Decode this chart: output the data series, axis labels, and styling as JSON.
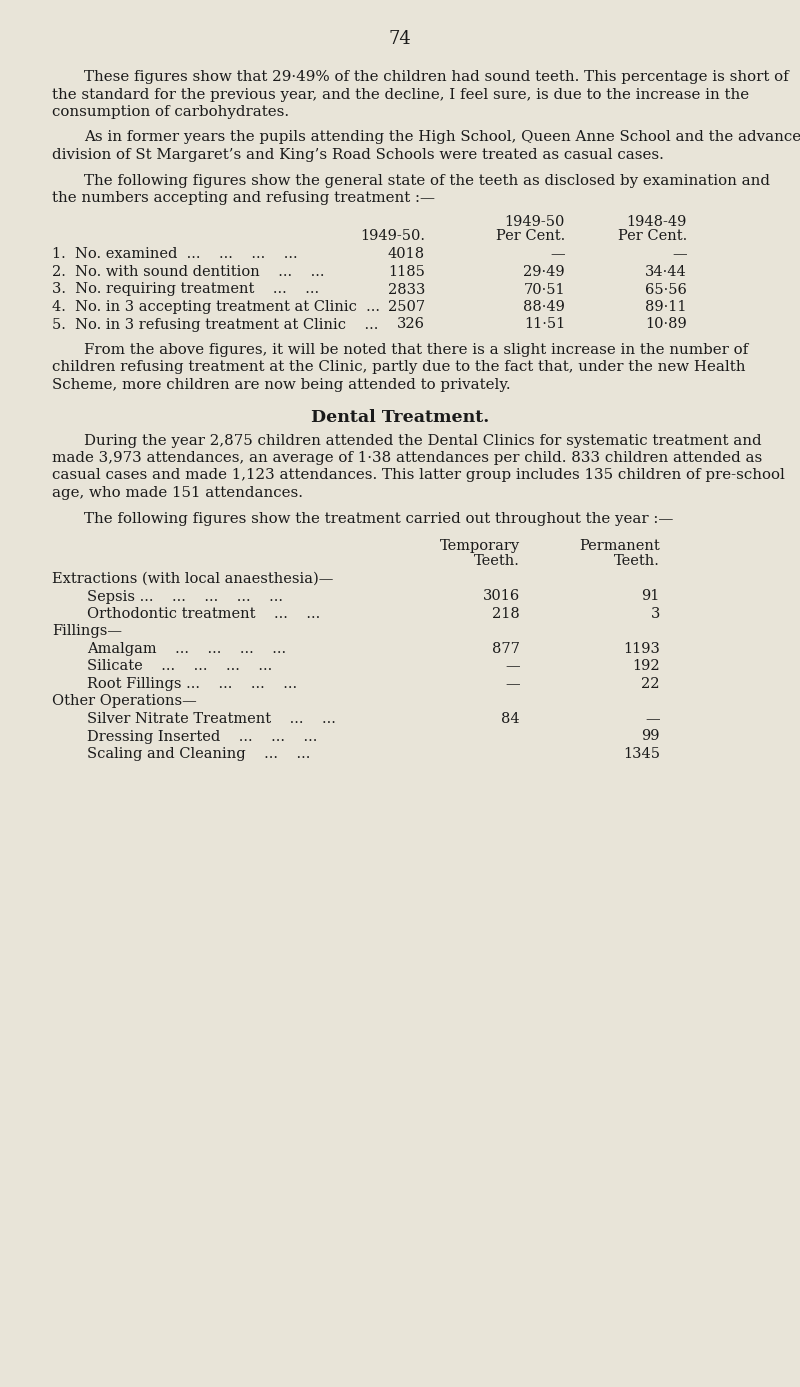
{
  "page_number": "74",
  "bg_color": "#e8e4d8",
  "text_color": "#1a1a1a",
  "paragraphs": [
    "These figures show that 29·49% of the children had sound teeth.  This percentage is short of the standard for the previous year, and the decline, I feel sure, is due to the increase in the consumption of carbohydrates.",
    "As in former years the pupils attending the High School, Queen Anne School and the advanced division of St Margaret’s and King’s Road Schools were treated as casual cases.",
    "The following figures show the general state of the teeth as disclosed by examination and the numbers accepting and refusing treatment :—"
  ],
  "table1_rows": [
    [
      "1.  No. examined  ...    ...    ...    ...",
      "4018",
      "—",
      "—"
    ],
    [
      "2.  No. with sound dentition    ...    ...",
      "1185",
      "29·49",
      "34·44"
    ],
    [
      "3.  No. requiring treatment    ...    ...",
      "2833",
      "70·51",
      "65·56"
    ],
    [
      "4.  No. in 3 accepting treatment at Clinic  ...",
      "2507",
      "88·49",
      "89·11"
    ],
    [
      "5.  No. in 3 refusing treatment at Clinic    ...",
      "326",
      "11·51",
      "10·89"
    ]
  ],
  "para2": "From the above figures, it will be noted that there is a slight increase in the number of children refusing treatment at the Clinic, partly due to the fact that, under the new Health Scheme, more children are now being attended to privately.",
  "section_heading": "Dental Treatment.",
  "para3a": "During the year 2,875 children attended the Dental Clinics for systematic treatment and made 3,973 attendances, an average of 1·38 attendances per child.  833 children attended as casual cases and made 1,123 attendances.  This latter group includes 135 children of pre-school age, who made 151 attendances.",
  "para3b": "The following figures show the treatment carried out throughout the year :—",
  "table2_sections": [
    {
      "section_label": "Extractions (with local anaesthesia)—",
      "rows": [
        [
          "Sepsis ...    ...    ...    ...    ...",
          "3016",
          "91"
        ],
        [
          "Orthodontic treatment    ...    ...",
          "218",
          "3"
        ]
      ]
    },
    {
      "section_label": "Fillings—",
      "rows": [
        [
          "Amalgam    ...    ...    ...    ...",
          "877",
          "1193"
        ],
        [
          "Silicate    ...    ...    ...    ...",
          "—",
          "192"
        ],
        [
          "Root Fillings ...    ...    ...    ...",
          "—",
          "22"
        ]
      ]
    },
    {
      "section_label": "Other Operations—",
      "rows": [
        [
          "Silver Nitrate Treatment    ...    ...",
          "84",
          "—"
        ],
        [
          "Dressing Inserted    ...    ...    ...",
          "",
          "99"
        ],
        [
          "Scaling and Cleaning    ...    ...",
          "",
          "1345"
        ]
      ]
    }
  ]
}
